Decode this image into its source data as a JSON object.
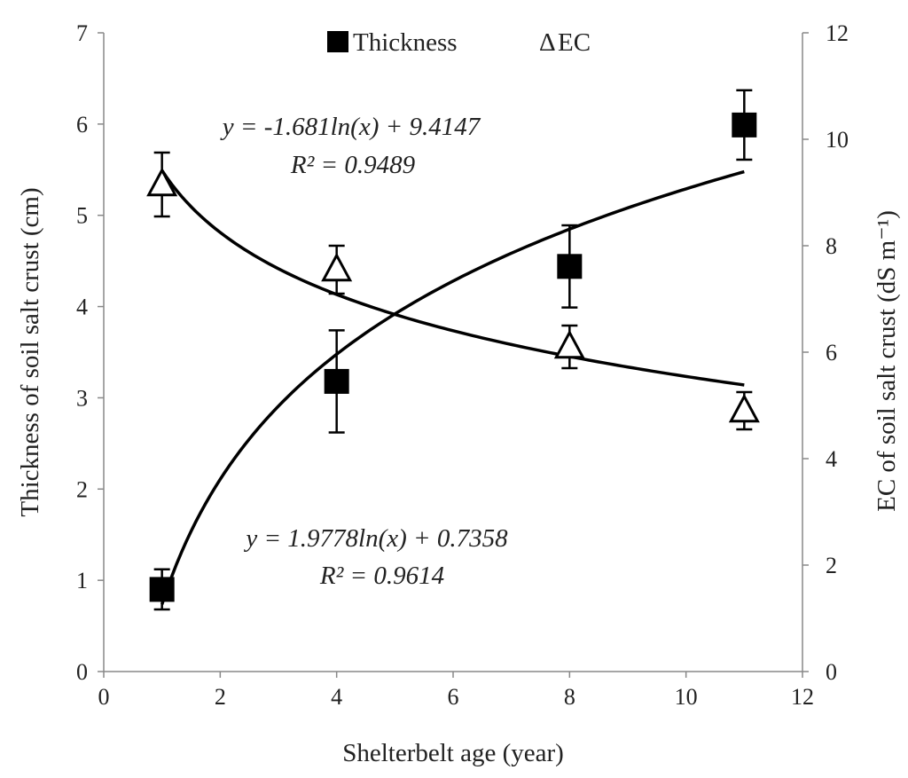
{
  "chart_data": {
    "type": "scatter",
    "x_axis": {
      "label": "Shelterbelt age  (year)",
      "range": [
        0,
        12
      ],
      "ticks": [
        "0",
        "2",
        "4",
        "6",
        "8",
        "10",
        "12"
      ]
    },
    "y_left_axis": {
      "label": "Thickness of soil salt crust  (cm)",
      "range": [
        0,
        7
      ],
      "ticks": [
        "0",
        "1",
        "2",
        "3",
        "4",
        "5",
        "6",
        "7"
      ]
    },
    "y_right_axis": {
      "label": "EC of soil salt crust  (dS m⁻¹)",
      "range": [
        0,
        12
      ],
      "ticks": [
        "0",
        "2",
        "4",
        "6",
        "8",
        "10",
        "12"
      ]
    },
    "legend": {
      "placement": "top-center"
    },
    "series": [
      {
        "name": "Thickness",
        "marker": "filled-square",
        "axis": "left",
        "x": [
          1,
          4,
          8,
          11
        ],
        "y": [
          0.9,
          3.18,
          4.44,
          5.99
        ],
        "error": [
          0.22,
          0.56,
          0.45,
          0.38
        ],
        "fit": {
          "type": "log",
          "a": 1.9778,
          "b": 0.7358,
          "equation": "y = 1.9778ln(x) + 0.7358",
          "r2": "R² = 0.9614"
        }
      },
      {
        "name": "EC",
        "marker": "open-triangle",
        "axis": "right",
        "x": [
          1,
          4,
          8,
          11
        ],
        "y": [
          9.15,
          7.55,
          6.1,
          4.9
        ],
        "error": [
          0.6,
          0.45,
          0.4,
          0.35
        ],
        "fit": {
          "type": "log",
          "a": -1.681,
          "b": 9.4147,
          "equation": "y = -1.681ln(x) + 9.4147",
          "r2": "R² = 0.9489"
        }
      }
    ]
  },
  "legend_items": [
    {
      "symbol": "■",
      "label": "Thickness"
    },
    {
      "symbol": "Δ",
      "label": "EC"
    }
  ]
}
